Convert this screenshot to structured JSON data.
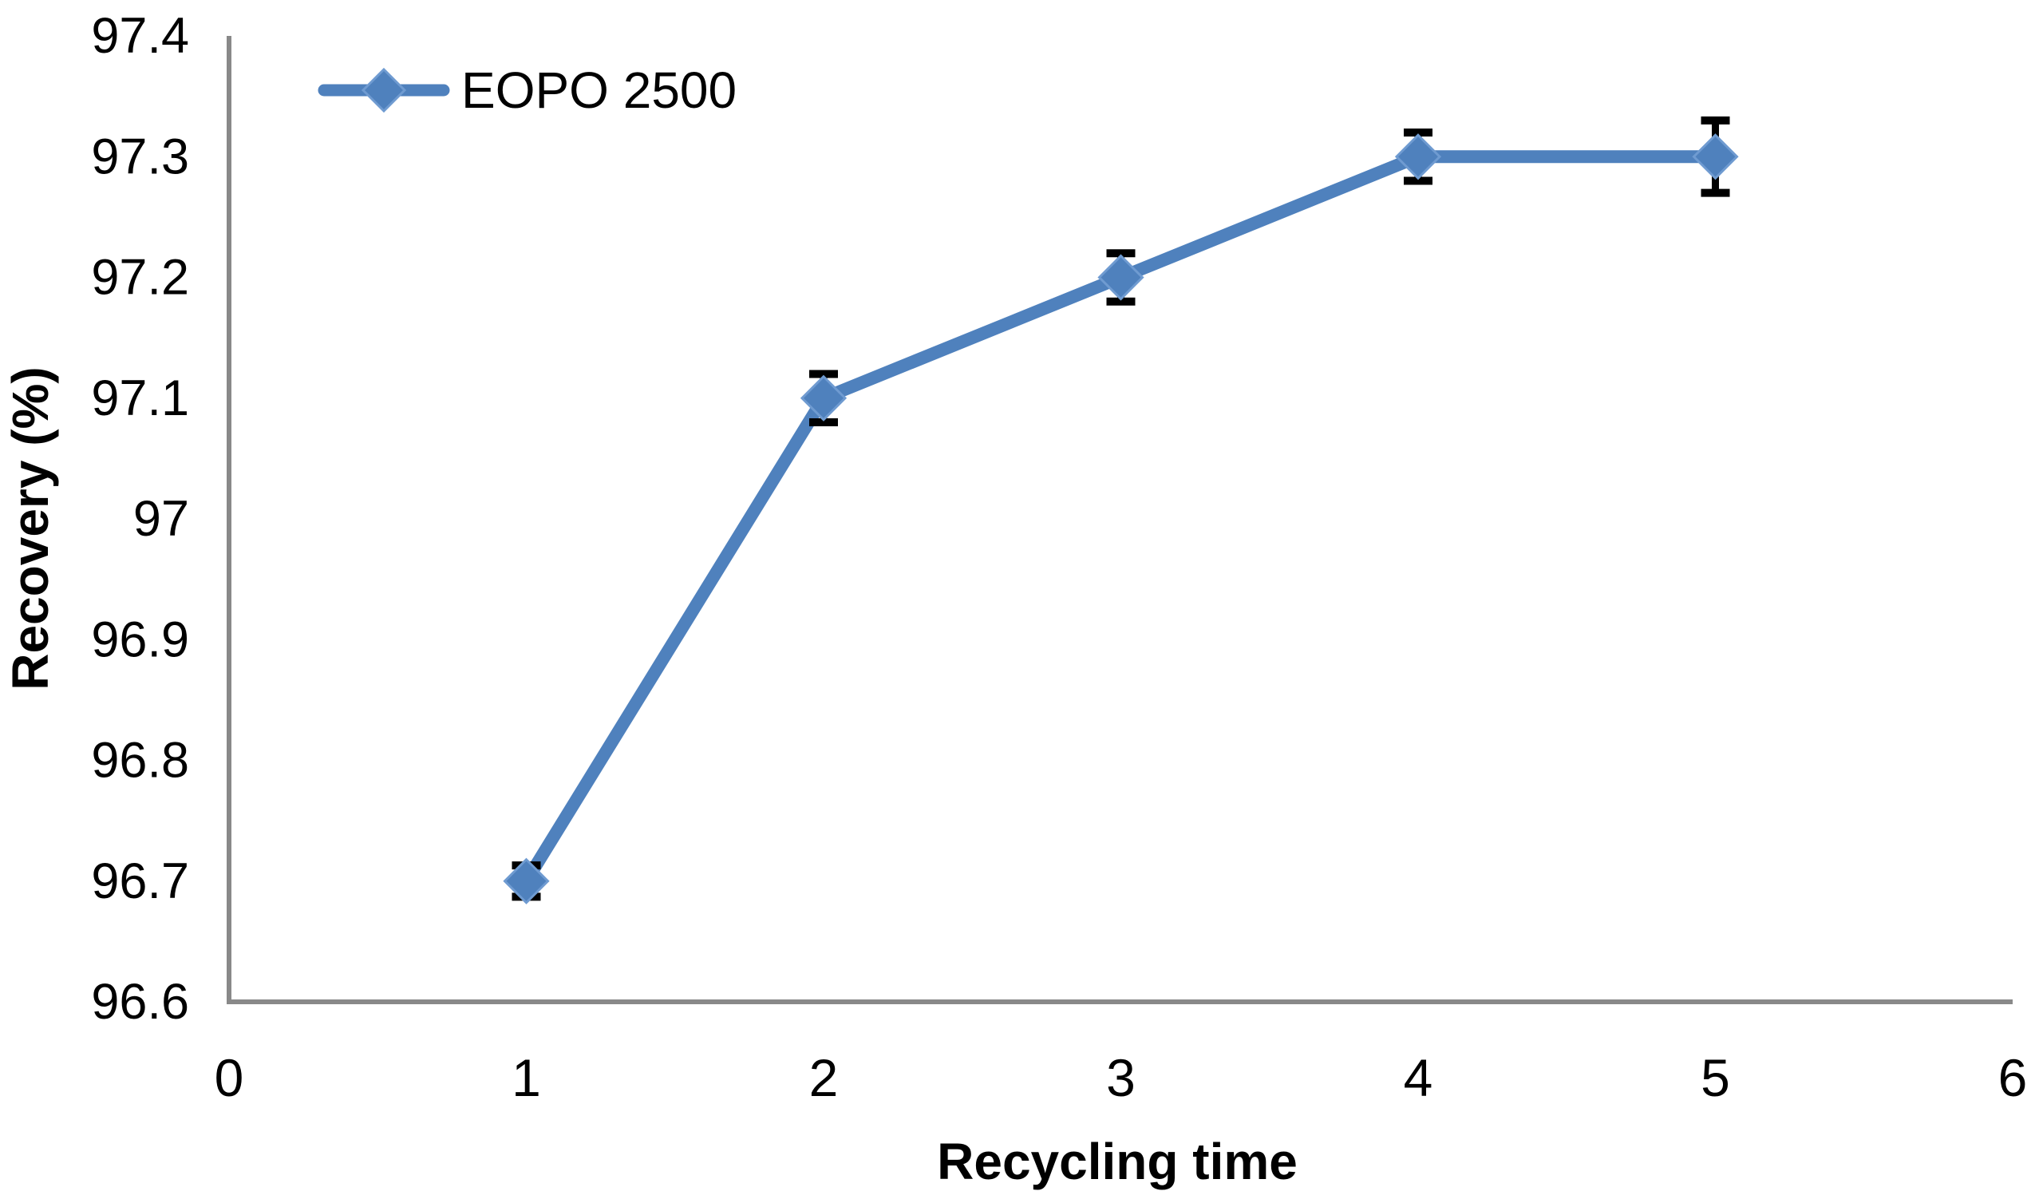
{
  "chart_data": {
    "type": "line",
    "title": "",
    "xlabel": "Recycling time",
    "ylabel": "Recovery (%)",
    "xlim": [
      0,
      6
    ],
    "ylim": [
      96.6,
      97.4
    ],
    "xticks": [
      "0",
      "1",
      "2",
      "3",
      "4",
      "5",
      "6"
    ],
    "yticks": [
      "96.6",
      "96.7",
      "96.8",
      "96.9",
      "97",
      "97.1",
      "97.2",
      "97.3",
      "97.4"
    ],
    "grid": false,
    "legend": {
      "position": "top-left-inside",
      "marker": "diamond-on-line"
    },
    "series": [
      {
        "name": "EOPO 2500",
        "x": [
          1,
          2,
          3,
          4,
          5
        ],
        "y": [
          96.7,
          97.1,
          97.2,
          97.3,
          97.3
        ],
        "y_error": [
          0.013,
          0.02,
          0.02,
          0.02,
          0.03
        ],
        "marker": "diamond"
      }
    ],
    "colors": {
      "series": "#4f81bd",
      "marker_edge": "#6f9bd1",
      "axis_line": "#898989",
      "error_bar": "#000000",
      "text": "#000000",
      "background": "#ffffff"
    }
  }
}
